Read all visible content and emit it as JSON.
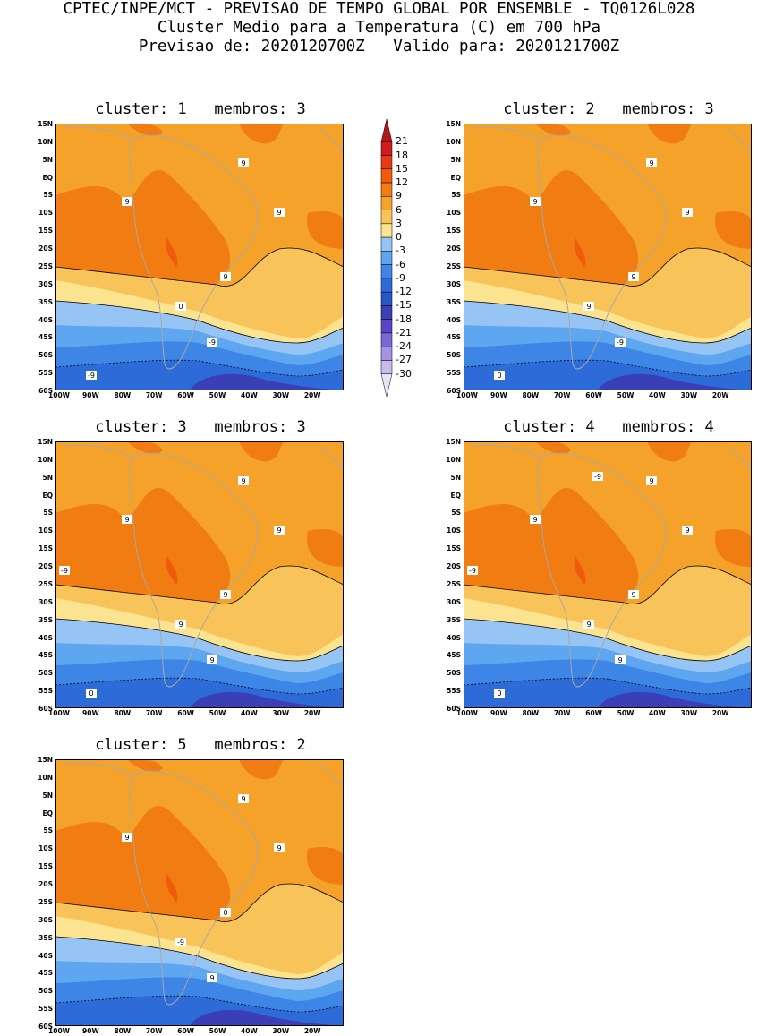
{
  "header": {
    "line1": "CPTEC/INPE/MCT - PREVISAO DE TEMPO GLOBAL POR ENSEMBLE - TQ0126L028",
    "line2": "Cluster Medio para a Temperatura (C) em 700 hPa",
    "line3": "Previsao de: 2020120700Z   Valido para: 2020121700Z"
  },
  "lat_labels": [
    "15N",
    "10N",
    "5N",
    "EQ",
    "5S",
    "10S",
    "15S",
    "20S",
    "25S",
    "30S",
    "35S",
    "40S",
    "45S",
    "50S",
    "55S",
    "60S"
  ],
  "lon_labels": [
    "100W",
    "90W",
    "80W",
    "70W",
    "60W",
    "50W",
    "40W",
    "30W",
    "20W"
  ],
  "colorbar": {
    "labels": [
      "21",
      "18",
      "15",
      "12",
      "9",
      "6",
      "3",
      "0",
      "-3",
      "-6",
      "-9",
      "-12",
      "-15",
      "-18",
      "-21",
      "-24",
      "-27",
      "-30"
    ],
    "colors": [
      "#b01818",
      "#d01c1c",
      "#e83a14",
      "#f05a0c",
      "#f07c12",
      "#f5a22a",
      "#f8c45a",
      "#fbe38f",
      "#96c4f5",
      "#5ea6f0",
      "#3d86e6",
      "#2d6cd8",
      "#2a55c8",
      "#3a3fb6",
      "#5a45c8",
      "#7d68d8",
      "#a592e3",
      "#c8bcef",
      "#e8e4f8"
    ]
  },
  "clusters": [
    {
      "title": "cluster: 1   membros: 3",
      "contour_labels": [
        "9",
        "9",
        "9",
        "9",
        "0",
        "-9",
        "-9"
      ]
    },
    {
      "title": "cluster: 2   membros: 3",
      "contour_labels": [
        "9",
        "9",
        "9",
        "9",
        "9",
        "-9",
        "0"
      ]
    },
    {
      "title": "cluster: 3   membros: 3",
      "contour_labels": [
        "9",
        "9",
        "9",
        "9",
        "9",
        "9",
        "0",
        "-9"
      ]
    },
    {
      "title": "cluster: 4   membros: 4",
      "contour_labels": [
        "9",
        "9",
        "9",
        "9",
        "9",
        "9",
        "0",
        "-9",
        "-9"
      ]
    },
    {
      "title": "cluster: 5   membros: 2",
      "contour_labels": [
        "9",
        "9",
        "9",
        "0",
        "-9",
        "9"
      ]
    }
  ]
}
